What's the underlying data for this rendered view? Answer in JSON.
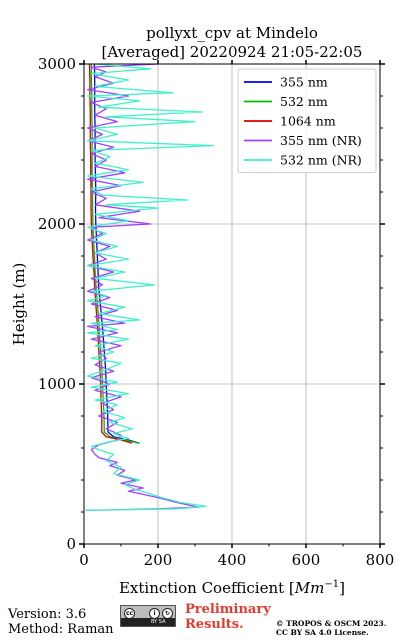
{
  "chart_data": {
    "type": "line",
    "title_line1": "pollyxt_cpv at Mindelo",
    "title_line2": "[Averaged] 20220924 21:05-22:05",
    "xlabel": "Extinction Coefficient [",
    "xlabel_unit": "Mm",
    "xlabel_exp": "−1",
    "xlabel_end": "]",
    "ylabel": "Height (m)",
    "xlim": [
      0,
      800
    ],
    "ylim": [
      0,
      3000
    ],
    "xticks": [
      "0",
      "200",
      "400",
      "600",
      "800"
    ],
    "yticks": [
      "0",
      "1000",
      "2000",
      "3000"
    ],
    "grid": true,
    "legend_position": "top-right",
    "series": [
      {
        "name": "355 nm",
        "color": "#0000ff",
        "points": [
          [
            150,
            630
          ],
          [
            120,
            650
          ],
          [
            80,
            670
          ],
          [
            65,
            700
          ],
          [
            64,
            800
          ],
          [
            62,
            900
          ],
          [
            60,
            1000
          ],
          [
            58,
            1100
          ],
          [
            55,
            1200
          ],
          [
            52,
            1300
          ],
          [
            48,
            1400
          ],
          [
            44,
            1500
          ],
          [
            40,
            1600
          ],
          [
            38,
            1700
          ],
          [
            36,
            1800
          ],
          [
            34,
            1900
          ],
          [
            32,
            2000
          ],
          [
            31,
            2100
          ],
          [
            32,
            2200
          ],
          [
            31,
            2300
          ],
          [
            30,
            2400
          ],
          [
            30,
            2500
          ],
          [
            30,
            2600
          ],
          [
            29,
            2700
          ],
          [
            29,
            2800
          ],
          [
            29,
            2900
          ],
          [
            28,
            3000
          ]
        ]
      },
      {
        "name": "532 nm",
        "color": "#00bb00",
        "points": [
          [
            150,
            630
          ],
          [
            110,
            650
          ],
          [
            70,
            670
          ],
          [
            55,
            700
          ],
          [
            54,
            800
          ],
          [
            52,
            900
          ],
          [
            50,
            1000
          ],
          [
            48,
            1100
          ],
          [
            45,
            1200
          ],
          [
            42,
            1300
          ],
          [
            40,
            1400
          ],
          [
            36,
            1500
          ],
          [
            33,
            1600
          ],
          [
            30,
            1700
          ],
          [
            28,
            1800
          ],
          [
            26,
            1900
          ],
          [
            24,
            2000
          ],
          [
            23,
            2100
          ],
          [
            23,
            2200
          ],
          [
            22,
            2300
          ],
          [
            22,
            2400
          ],
          [
            22,
            2500
          ],
          [
            22,
            2600
          ],
          [
            21,
            2700
          ],
          [
            21,
            2800
          ],
          [
            20,
            2900
          ],
          [
            20,
            3000
          ]
        ]
      },
      {
        "name": "1064 nm",
        "color": "#dd0000",
        "points": [
          [
            130,
            630
          ],
          [
            100,
            650
          ],
          [
            60,
            670
          ],
          [
            48,
            700
          ],
          [
            48,
            800
          ],
          [
            46,
            900
          ],
          [
            45,
            1000
          ],
          [
            43,
            1100
          ],
          [
            40,
            1200
          ],
          [
            38,
            1300
          ],
          [
            35,
            1400
          ],
          [
            32,
            1500
          ],
          [
            29,
            1600
          ],
          [
            27,
            1700
          ],
          [
            24,
            1800
          ],
          [
            22,
            1900
          ],
          [
            20,
            2000
          ],
          [
            19,
            2100
          ],
          [
            19,
            2200
          ],
          [
            18,
            2300
          ],
          [
            18,
            2400
          ],
          [
            17,
            2500
          ],
          [
            17,
            2600
          ],
          [
            17,
            2700
          ],
          [
            16,
            2800
          ],
          [
            16,
            2900
          ],
          [
            15,
            3000
          ]
        ]
      },
      {
        "name": "355 nm (NR)",
        "color": "#a040ff",
        "points": [
          [
            5,
            210
          ],
          [
            200,
            220
          ],
          [
            310,
            230
          ],
          [
            250,
            260
          ],
          [
            200,
            290
          ],
          [
            160,
            310
          ],
          [
            120,
            330
          ],
          [
            160,
            350
          ],
          [
            100,
            380
          ],
          [
            140,
            400
          ],
          [
            90,
            430
          ],
          [
            110,
            460
          ],
          [
            70,
            490
          ],
          [
            90,
            510
          ],
          [
            40,
            540
          ],
          [
            30,
            560
          ],
          [
            20,
            590
          ],
          [
            40,
            620
          ],
          [
            90,
            650
          ],
          [
            100,
            680
          ],
          [
            60,
            720
          ],
          [
            90,
            760
          ],
          [
            40,
            800
          ],
          [
            80,
            840
          ],
          [
            50,
            880
          ],
          [
            100,
            920
          ],
          [
            30,
            960
          ],
          [
            70,
            1000
          ],
          [
            20,
            1040
          ],
          [
            80,
            1080
          ],
          [
            30,
            1120
          ],
          [
            60,
            1160
          ],
          [
            40,
            1200
          ],
          [
            100,
            1240
          ],
          [
            20,
            1280
          ],
          [
            90,
            1320
          ],
          [
            10,
            1360
          ],
          [
            110,
            1380
          ],
          [
            30,
            1420
          ],
          [
            90,
            1460
          ],
          [
            20,
            1500
          ],
          [
            70,
            1540
          ],
          [
            10,
            1580
          ],
          [
            50,
            1620
          ],
          [
            20,
            1660
          ],
          [
            80,
            1700
          ],
          [
            10,
            1740
          ],
          [
            60,
            1780
          ],
          [
            30,
            1820
          ],
          [
            70,
            1860
          ],
          [
            10,
            1900
          ],
          [
            50,
            1940
          ],
          [
            20,
            1980
          ],
          [
            180,
            2000
          ],
          [
            40,
            2040
          ],
          [
            150,
            2080
          ],
          [
            30,
            2120
          ],
          [
            60,
            2160
          ],
          [
            20,
            2200
          ],
          [
            100,
            2240
          ],
          [
            10,
            2280
          ],
          [
            110,
            2320
          ],
          [
            30,
            2360
          ],
          [
            60,
            2400
          ],
          [
            20,
            2440
          ],
          [
            80,
            2480
          ],
          [
            10,
            2520
          ],
          [
            50,
            2560
          ],
          [
            10,
            2600
          ],
          [
            90,
            2640
          ],
          [
            30,
            2680
          ],
          [
            60,
            2720
          ],
          [
            20,
            2760
          ],
          [
            120,
            2800
          ],
          [
            10,
            2840
          ],
          [
            80,
            2880
          ],
          [
            30,
            2920
          ],
          [
            60,
            2950
          ],
          [
            20,
            2980
          ],
          [
            200,
            3000
          ]
        ]
      },
      {
        "name": "532 nm (NR)",
        "color": "#40f0c8",
        "points": [
          [
            5,
            210
          ],
          [
            250,
            220
          ],
          [
            330,
            235
          ],
          [
            260,
            260
          ],
          [
            210,
            290
          ],
          [
            170,
            320
          ],
          [
            140,
            340
          ],
          [
            110,
            370
          ],
          [
            150,
            400
          ],
          [
            80,
            440
          ],
          [
            100,
            480
          ],
          [
            60,
            520
          ],
          [
            80,
            560
          ],
          [
            40,
            590
          ],
          [
            20,
            610
          ],
          [
            70,
            640
          ],
          [
            120,
            660
          ],
          [
            80,
            690
          ],
          [
            130,
            720
          ],
          [
            70,
            760
          ],
          [
            110,
            790
          ],
          [
            50,
            830
          ],
          [
            90,
            870
          ],
          [
            30,
            900
          ],
          [
            120,
            940
          ],
          [
            20,
            980
          ],
          [
            90,
            1010
          ],
          [
            10,
            1050
          ],
          [
            60,
            1090
          ],
          [
            100,
            1130
          ],
          [
            20,
            1160
          ],
          [
            80,
            1200
          ],
          [
            30,
            1240
          ],
          [
            120,
            1280
          ],
          [
            10,
            1320
          ],
          [
            90,
            1340
          ],
          [
            20,
            1380
          ],
          [
            150,
            1400
          ],
          [
            40,
            1440
          ],
          [
            110,
            1480
          ],
          [
            10,
            1520
          ],
          [
            60,
            1550
          ],
          [
            20,
            1580
          ],
          [
            190,
            1620
          ],
          [
            30,
            1660
          ],
          [
            110,
            1700
          ],
          [
            10,
            1740
          ],
          [
            120,
            1780
          ],
          [
            30,
            1820
          ],
          [
            90,
            1860
          ],
          [
            20,
            1900
          ],
          [
            60,
            1940
          ],
          [
            10,
            1980
          ],
          [
            120,
            2020
          ],
          [
            30,
            2060
          ],
          [
            200,
            2100
          ],
          [
            60,
            2120
          ],
          [
            280,
            2150
          ],
          [
            50,
            2180
          ],
          [
            20,
            2220
          ],
          [
            160,
            2260
          ],
          [
            10,
            2300
          ],
          [
            120,
            2340
          ],
          [
            30,
            2380
          ],
          [
            70,
            2420
          ],
          [
            20,
            2460
          ],
          [
            350,
            2490
          ],
          [
            10,
            2520
          ],
          [
            90,
            2560
          ],
          [
            30,
            2600
          ],
          [
            300,
            2640
          ],
          [
            60,
            2670
          ],
          [
            320,
            2700
          ],
          [
            40,
            2730
          ],
          [
            150,
            2770
          ],
          [
            10,
            2800
          ],
          [
            240,
            2820
          ],
          [
            30,
            2860
          ],
          [
            120,
            2900
          ],
          [
            20,
            2940
          ],
          [
            180,
            2970
          ],
          [
            30,
            3000
          ]
        ]
      }
    ]
  },
  "footer": {
    "version": "Version: 3.6",
    "method": "Method: Raman",
    "preliminary_line1": "Preliminary",
    "preliminary_line2": "Results.",
    "copyright_line1": "© TROPOS & OSCM 2023.",
    "copyright_line2": "CC BY SA 4.0 License.",
    "logo_text": "BY  SA"
  }
}
